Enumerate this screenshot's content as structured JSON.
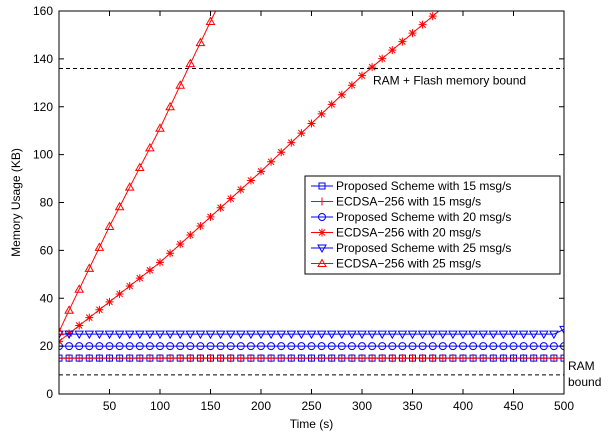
{
  "chart_data": {
    "type": "line",
    "xlabel": "Time (s)",
    "ylabel": "Memory Usage (KB)",
    "xlim": [
      0,
      500
    ],
    "ylim": [
      0,
      160
    ],
    "xticks": [
      50,
      100,
      150,
      200,
      250,
      300,
      350,
      400,
      450,
      500
    ],
    "yticks": [
      0,
      20,
      40,
      60,
      80,
      100,
      120,
      140,
      160
    ],
    "grid": false,
    "legend_position": "right",
    "reference_lines": [
      {
        "label": "RAM + Flash memory bound",
        "y": 136
      },
      {
        "label": "RAM bound",
        "y": 8
      }
    ],
    "series": [
      {
        "name": "Proposed Scheme with 15 msg/s",
        "color": "#0000ff",
        "marker": "square",
        "x": [
          0,
          500
        ],
        "y": [
          15,
          15
        ],
        "marker_step": 10
      },
      {
        "name": "ECDSA−256 with 15 msg/s",
        "color": "#ff0000",
        "marker": "plus",
        "x": [
          0,
          500
        ],
        "y": [
          15,
          15
        ],
        "marker_step": 10
      },
      {
        "name": "Proposed Scheme with 20 msg/s",
        "color": "#0000ff",
        "marker": "circle",
        "x": [
          0,
          500
        ],
        "y": [
          20,
          20
        ],
        "marker_step": 10
      },
      {
        "name": "ECDSA−256 with 20 msg/s",
        "color": "#ff0000",
        "marker": "star",
        "x": [
          0,
          100,
          200,
          300,
          376
        ],
        "y": [
          22,
          55,
          93,
          133,
          160
        ],
        "marker_step": 10
      },
      {
        "name": "Proposed Scheme with 25 msg/s",
        "color": "#0000ff",
        "marker": "triangle-down",
        "x": [
          0,
          490,
          500
        ],
        "y": [
          25,
          25,
          27
        ],
        "marker_step": 10
      },
      {
        "name": "ECDSA−256 with 25 msg/s",
        "color": "#ff0000",
        "marker": "triangle-up",
        "x": [
          0,
          10,
          50,
          100,
          130,
          155
        ],
        "y": [
          26,
          35,
          70,
          111,
          138,
          160
        ],
        "marker_step": 10
      }
    ]
  }
}
